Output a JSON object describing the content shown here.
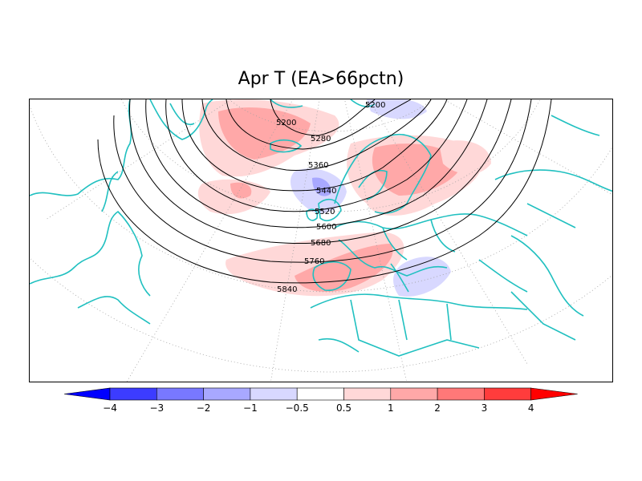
{
  "title": "Apr T (EA>66pctn)",
  "contours": {
    "labels": [
      "5200",
      "5200",
      "5280",
      "5360",
      "5440",
      "5520",
      "5600",
      "5680",
      "5760",
      "5840"
    ]
  },
  "colorbar": {
    "ticks": [
      "−4",
      "−3",
      "−2",
      "−1",
      "−0.5",
      "0.5",
      "1",
      "2",
      "3",
      "4"
    ],
    "colors": [
      "#0000ff",
      "#3c3cff",
      "#7878ff",
      "#a8a8ff",
      "#d8d8ff",
      "#ffffff",
      "#ffd8d8",
      "#ffa8a8",
      "#ff7878",
      "#ff3c3c",
      "#ff0000"
    ]
  },
  "colors": {
    "coastline": "#20c0c0",
    "contour": "#000000",
    "warm_light": "#ffd8d8",
    "warm_medium": "#ffa8a8",
    "cold_light": "#d8d8ff",
    "cold_medium": "#a8a8ff"
  }
}
